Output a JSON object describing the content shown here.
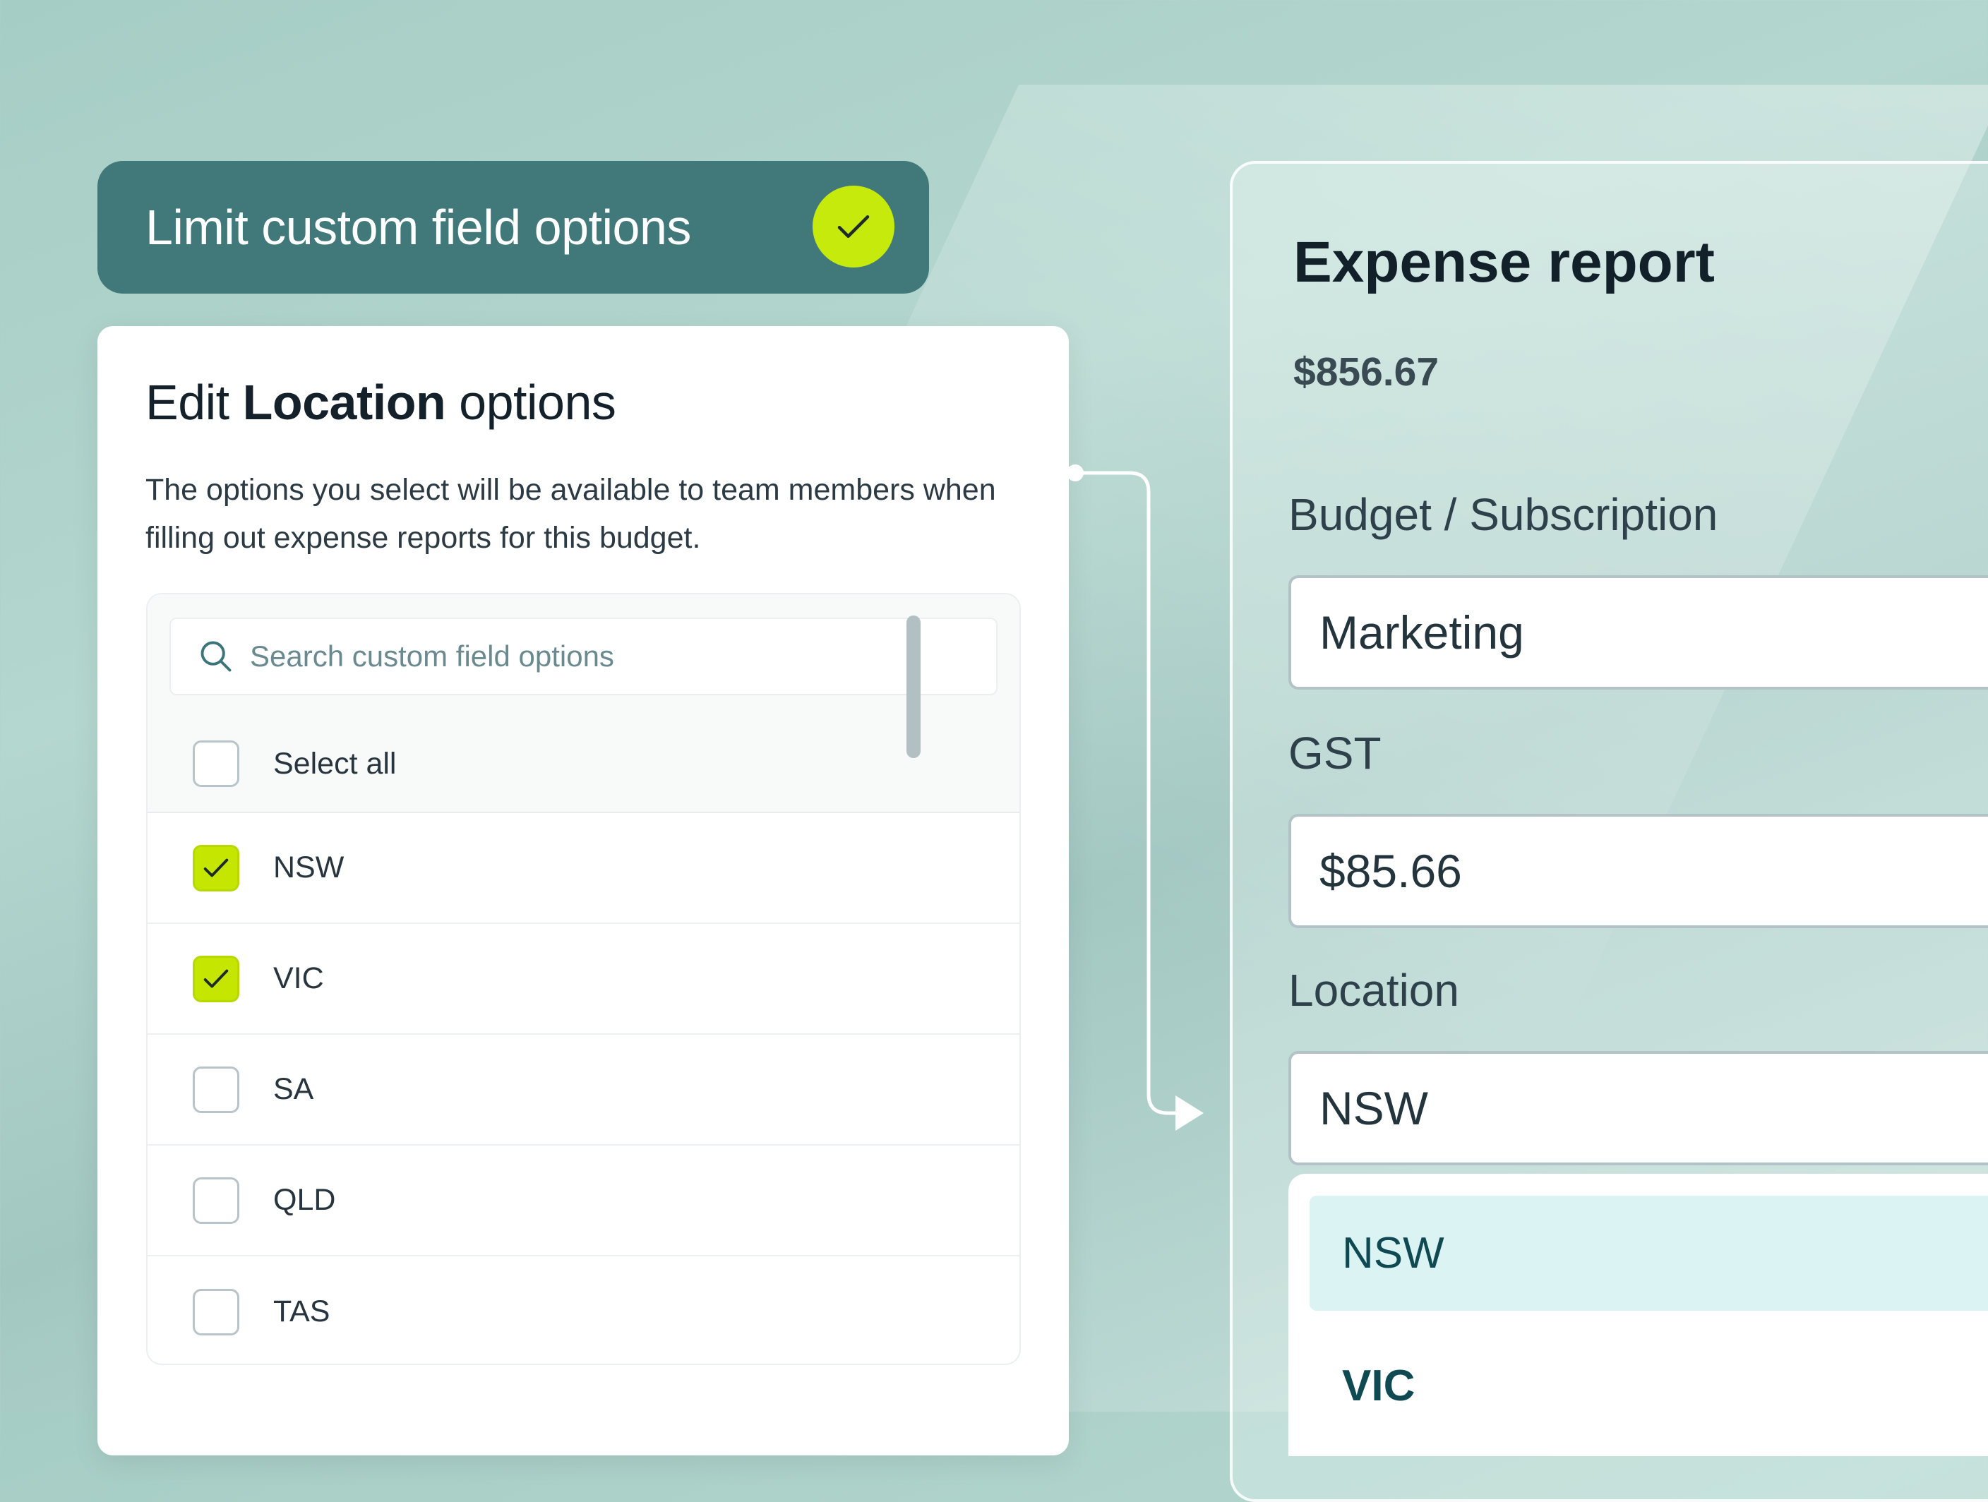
{
  "banner": {
    "title": "Limit custom field options",
    "icon": "check-icon"
  },
  "edit_card": {
    "title_prefix": "Edit ",
    "title_bold": "Location",
    "title_suffix": " options",
    "description": "The options you select will be available to team members when filling out expense reports for this budget.",
    "search": {
      "placeholder": "Search custom field options",
      "value": ""
    },
    "select_all": {
      "label": "Select all",
      "checked": false
    },
    "options": [
      {
        "label": "NSW",
        "checked": true
      },
      {
        "label": "VIC",
        "checked": true
      },
      {
        "label": "SA",
        "checked": false
      },
      {
        "label": "QLD",
        "checked": false
      },
      {
        "label": "TAS",
        "checked": false
      }
    ]
  },
  "expense": {
    "title": "Expense report",
    "amount": "$856.67",
    "fields": [
      {
        "label": "Budget / Subscription",
        "value": "Marketing"
      },
      {
        "label": "GST",
        "value": "$85.66"
      },
      {
        "label": "Location",
        "value": "NSW"
      }
    ],
    "dropdown_options": [
      "NSW",
      "VIC"
    ]
  },
  "colors": {
    "accent": "#c6ea0c",
    "banner": "#41797a",
    "highlight": "#dcf3f4"
  }
}
